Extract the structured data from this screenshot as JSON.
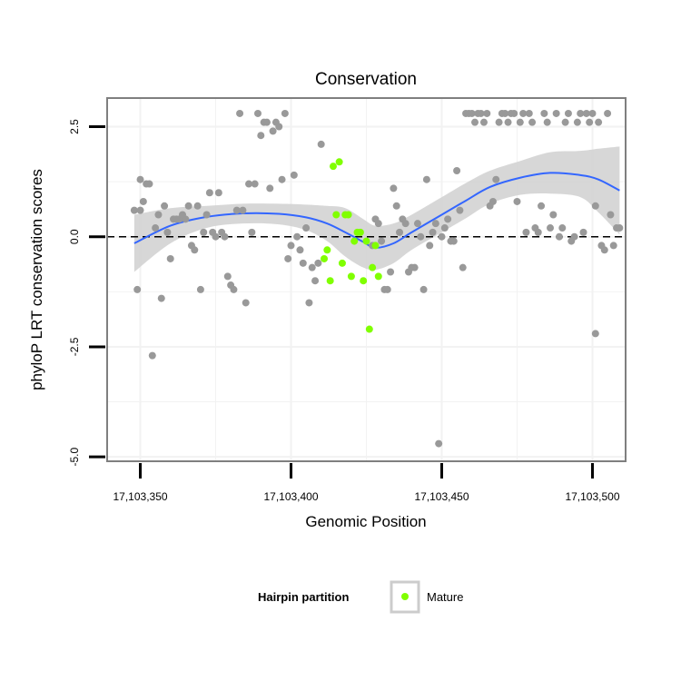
{
  "chart_data": {
    "type": "scatter",
    "title": "Conservation",
    "xlabel": "Genomic Position",
    "ylabel": "phyloP LRT conservation scores",
    "xlim": [
      17103339,
      17103511
    ],
    "ylim": [
      -5.1,
      3.15
    ],
    "x_ticks": [
      17103350,
      17103400,
      17103450,
      17103500
    ],
    "x_tick_labels": [
      "17,103,350",
      "17,103,400",
      "17,103,450",
      "17,103,500"
    ],
    "y_ticks": [
      -5.0,
      -2.5,
      0.0,
      2.5
    ],
    "y_tick_labels": [
      "-5.0",
      "-2.5",
      "0.0",
      "2.5"
    ],
    "reference_line_y": 0,
    "grid": true,
    "colors": {
      "points": "#999999",
      "mature": "#80ff00",
      "smooth_line": "#3366ff",
      "band": "#d3d3d3",
      "panel_border": "#7f7f7f",
      "grid": "#f2f2f2"
    },
    "legend": {
      "title": "Hairpin partition",
      "entries": [
        "Mature"
      ],
      "position": "bottom"
    },
    "series": [
      {
        "group": "other",
        "points": [
          [
            17103348,
            0.6
          ],
          [
            17103349,
            -1.2
          ],
          [
            17103350,
            0.6
          ],
          [
            17103350,
            1.3
          ],
          [
            17103351,
            0.8
          ],
          [
            17103352,
            1.2
          ],
          [
            17103353,
            1.2
          ],
          [
            17103354,
            -2.7
          ],
          [
            17103355,
            0.2
          ],
          [
            17103356,
            0.5
          ],
          [
            17103357,
            -1.4
          ],
          [
            17103358,
            0.7
          ],
          [
            17103359,
            0.1
          ],
          [
            17103360,
            -0.5
          ],
          [
            17103361,
            0.4
          ],
          [
            17103362,
            0.4
          ],
          [
            17103363,
            0.4
          ],
          [
            17103364,
            0.5
          ],
          [
            17103365,
            0.4
          ],
          [
            17103366,
            0.7
          ],
          [
            17103367,
            -0.2
          ],
          [
            17103368,
            -0.3
          ],
          [
            17103369,
            0.7
          ],
          [
            17103370,
            -1.2
          ],
          [
            17103371,
            0.1
          ],
          [
            17103372,
            0.5
          ],
          [
            17103373,
            1.0
          ],
          [
            17103374,
            0.1
          ],
          [
            17103375,
            0.0
          ],
          [
            17103376,
            1.0
          ],
          [
            17103377,
            0.1
          ],
          [
            17103378,
            0.0
          ],
          [
            17103379,
            -0.9
          ],
          [
            17103380,
            -1.1
          ],
          [
            17103381,
            -1.2
          ],
          [
            17103382,
            0.6
          ],
          [
            17103383,
            2.8
          ],
          [
            17103384,
            0.6
          ],
          [
            17103385,
            -1.5
          ],
          [
            17103386,
            1.2
          ],
          [
            17103387,
            0.1
          ],
          [
            17103388,
            1.2
          ],
          [
            17103389,
            2.8
          ],
          [
            17103390,
            2.3
          ],
          [
            17103391,
            2.6
          ],
          [
            17103392,
            2.6
          ],
          [
            17103393,
            1.1
          ],
          [
            17103394,
            2.4
          ],
          [
            17103395,
            2.6
          ],
          [
            17103396,
            2.5
          ],
          [
            17103397,
            1.3
          ],
          [
            17103398,
            2.8
          ],
          [
            17103399,
            -0.5
          ],
          [
            17103400,
            -0.2
          ],
          [
            17103401,
            1.4
          ],
          [
            17103402,
            0.0
          ],
          [
            17103403,
            -0.3
          ],
          [
            17103404,
            -0.6
          ],
          [
            17103405,
            0.2
          ],
          [
            17103406,
            -1.5
          ],
          [
            17103407,
            -0.7
          ],
          [
            17103408,
            -1.0
          ],
          [
            17103409,
            -0.6
          ],
          [
            17103410,
            2.1
          ],
          [
            17103427,
            -0.2
          ],
          [
            17103428,
            0.4
          ],
          [
            17103429,
            0.3
          ],
          [
            17103430,
            -0.1
          ],
          [
            17103431,
            -1.2
          ],
          [
            17103432,
            -1.2
          ],
          [
            17103433,
            -0.8
          ],
          [
            17103434,
            1.1
          ],
          [
            17103435,
            0.7
          ],
          [
            17103436,
            0.1
          ],
          [
            17103437,
            0.4
          ],
          [
            17103438,
            0.3
          ],
          [
            17103439,
            -0.8
          ],
          [
            17103440,
            -0.7
          ],
          [
            17103441,
            -0.7
          ],
          [
            17103442,
            0.3
          ],
          [
            17103443,
            0.0
          ],
          [
            17103444,
            -1.2
          ],
          [
            17103445,
            1.3
          ],
          [
            17103446,
            -0.2
          ],
          [
            17103447,
            0.1
          ],
          [
            17103448,
            0.3
          ],
          [
            17103449,
            -4.7
          ],
          [
            17103450,
            0.0
          ],
          [
            17103451,
            0.2
          ],
          [
            17103452,
            0.4
          ],
          [
            17103453,
            -0.1
          ],
          [
            17103454,
            -0.1
          ],
          [
            17103455,
            1.5
          ],
          [
            17103456,
            0.6
          ],
          [
            17103457,
            -0.7
          ],
          [
            17103458,
            2.8
          ],
          [
            17103459,
            2.8
          ],
          [
            17103460,
            2.8
          ],
          [
            17103461,
            2.6
          ],
          [
            17103462,
            2.8
          ],
          [
            17103463,
            2.8
          ],
          [
            17103464,
            2.6
          ],
          [
            17103465,
            2.8
          ],
          [
            17103466,
            0.7
          ],
          [
            17103467,
            0.8
          ],
          [
            17103468,
            1.3
          ],
          [
            17103469,
            2.6
          ],
          [
            17103470,
            2.8
          ],
          [
            17103471,
            2.8
          ],
          [
            17103472,
            2.6
          ],
          [
            17103473,
            2.8
          ],
          [
            17103474,
            2.8
          ],
          [
            17103475,
            0.8
          ],
          [
            17103476,
            2.6
          ],
          [
            17103477,
            2.8
          ],
          [
            17103478,
            0.1
          ],
          [
            17103479,
            2.8
          ],
          [
            17103480,
            2.6
          ],
          [
            17103481,
            0.2
          ],
          [
            17103482,
            0.1
          ],
          [
            17103483,
            0.7
          ],
          [
            17103484,
            2.8
          ],
          [
            17103485,
            2.6
          ],
          [
            17103486,
            0.2
          ],
          [
            17103487,
            0.5
          ],
          [
            17103488,
            2.8
          ],
          [
            17103489,
            0.0
          ],
          [
            17103490,
            0.2
          ],
          [
            17103491,
            2.6
          ],
          [
            17103492,
            2.8
          ],
          [
            17103493,
            -0.1
          ],
          [
            17103494,
            0.0
          ],
          [
            17103495,
            2.6
          ],
          [
            17103496,
            2.8
          ],
          [
            17103497,
            0.1
          ],
          [
            17103498,
            2.8
          ],
          [
            17103499,
            2.6
          ],
          [
            17103500,
            2.8
          ],
          [
            17103501,
            0.7
          ],
          [
            17103501,
            -2.2
          ],
          [
            17103502,
            2.6
          ],
          [
            17103503,
            -0.2
          ],
          [
            17103504,
            -0.3
          ],
          [
            17103505,
            2.8
          ],
          [
            17103506,
            0.5
          ],
          [
            17103507,
            -0.2
          ],
          [
            17103508,
            0.2
          ],
          [
            17103509,
            0.2
          ]
        ]
      },
      {
        "group": "Mature",
        "points": [
          [
            17103411,
            -0.5
          ],
          [
            17103412,
            -0.3
          ],
          [
            17103413,
            -1.0
          ],
          [
            17103414,
            1.6
          ],
          [
            17103415,
            0.5
          ],
          [
            17103416,
            1.7
          ],
          [
            17103417,
            -0.6
          ],
          [
            17103418,
            0.5
          ],
          [
            17103419,
            0.5
          ],
          [
            17103420,
            -0.9
          ],
          [
            17103421,
            -0.1
          ],
          [
            17103422,
            0.1
          ],
          [
            17103423,
            0.1
          ],
          [
            17103424,
            -1.0
          ],
          [
            17103425,
            -0.1
          ],
          [
            17103426,
            -2.1
          ],
          [
            17103427,
            -0.7
          ],
          [
            17103428,
            -0.2
          ],
          [
            17103429,
            -0.9
          ]
        ]
      }
    ],
    "smooth": {
      "x": [
        17103348,
        17103360,
        17103372,
        17103384,
        17103396,
        17103405,
        17103412,
        17103418,
        17103424,
        17103428,
        17103434,
        17103440,
        17103450,
        17103458,
        17103466,
        17103476,
        17103486,
        17103496,
        17103502,
        17103509
      ],
      "y": [
        -0.15,
        0.25,
        0.45,
        0.53,
        0.52,
        0.44,
        0.3,
        0.1,
        -0.12,
        -0.25,
        -0.15,
        0.1,
        0.5,
        0.82,
        1.13,
        1.34,
        1.45,
        1.4,
        1.3,
        1.05
      ],
      "lower": [
        -0.8,
        -0.15,
        0.2,
        0.3,
        0.28,
        0.15,
        -0.1,
        -0.45,
        -0.7,
        -0.75,
        -0.6,
        -0.3,
        0.1,
        0.42,
        0.75,
        0.95,
        0.98,
        0.9,
        0.55,
        0.05
      ],
      "upper": [
        0.5,
        0.65,
        0.7,
        0.75,
        0.75,
        0.73,
        0.7,
        0.65,
        0.4,
        0.25,
        0.3,
        0.5,
        0.9,
        1.22,
        1.5,
        1.72,
        1.92,
        1.95,
        2.0,
        2.05
      ]
    }
  }
}
